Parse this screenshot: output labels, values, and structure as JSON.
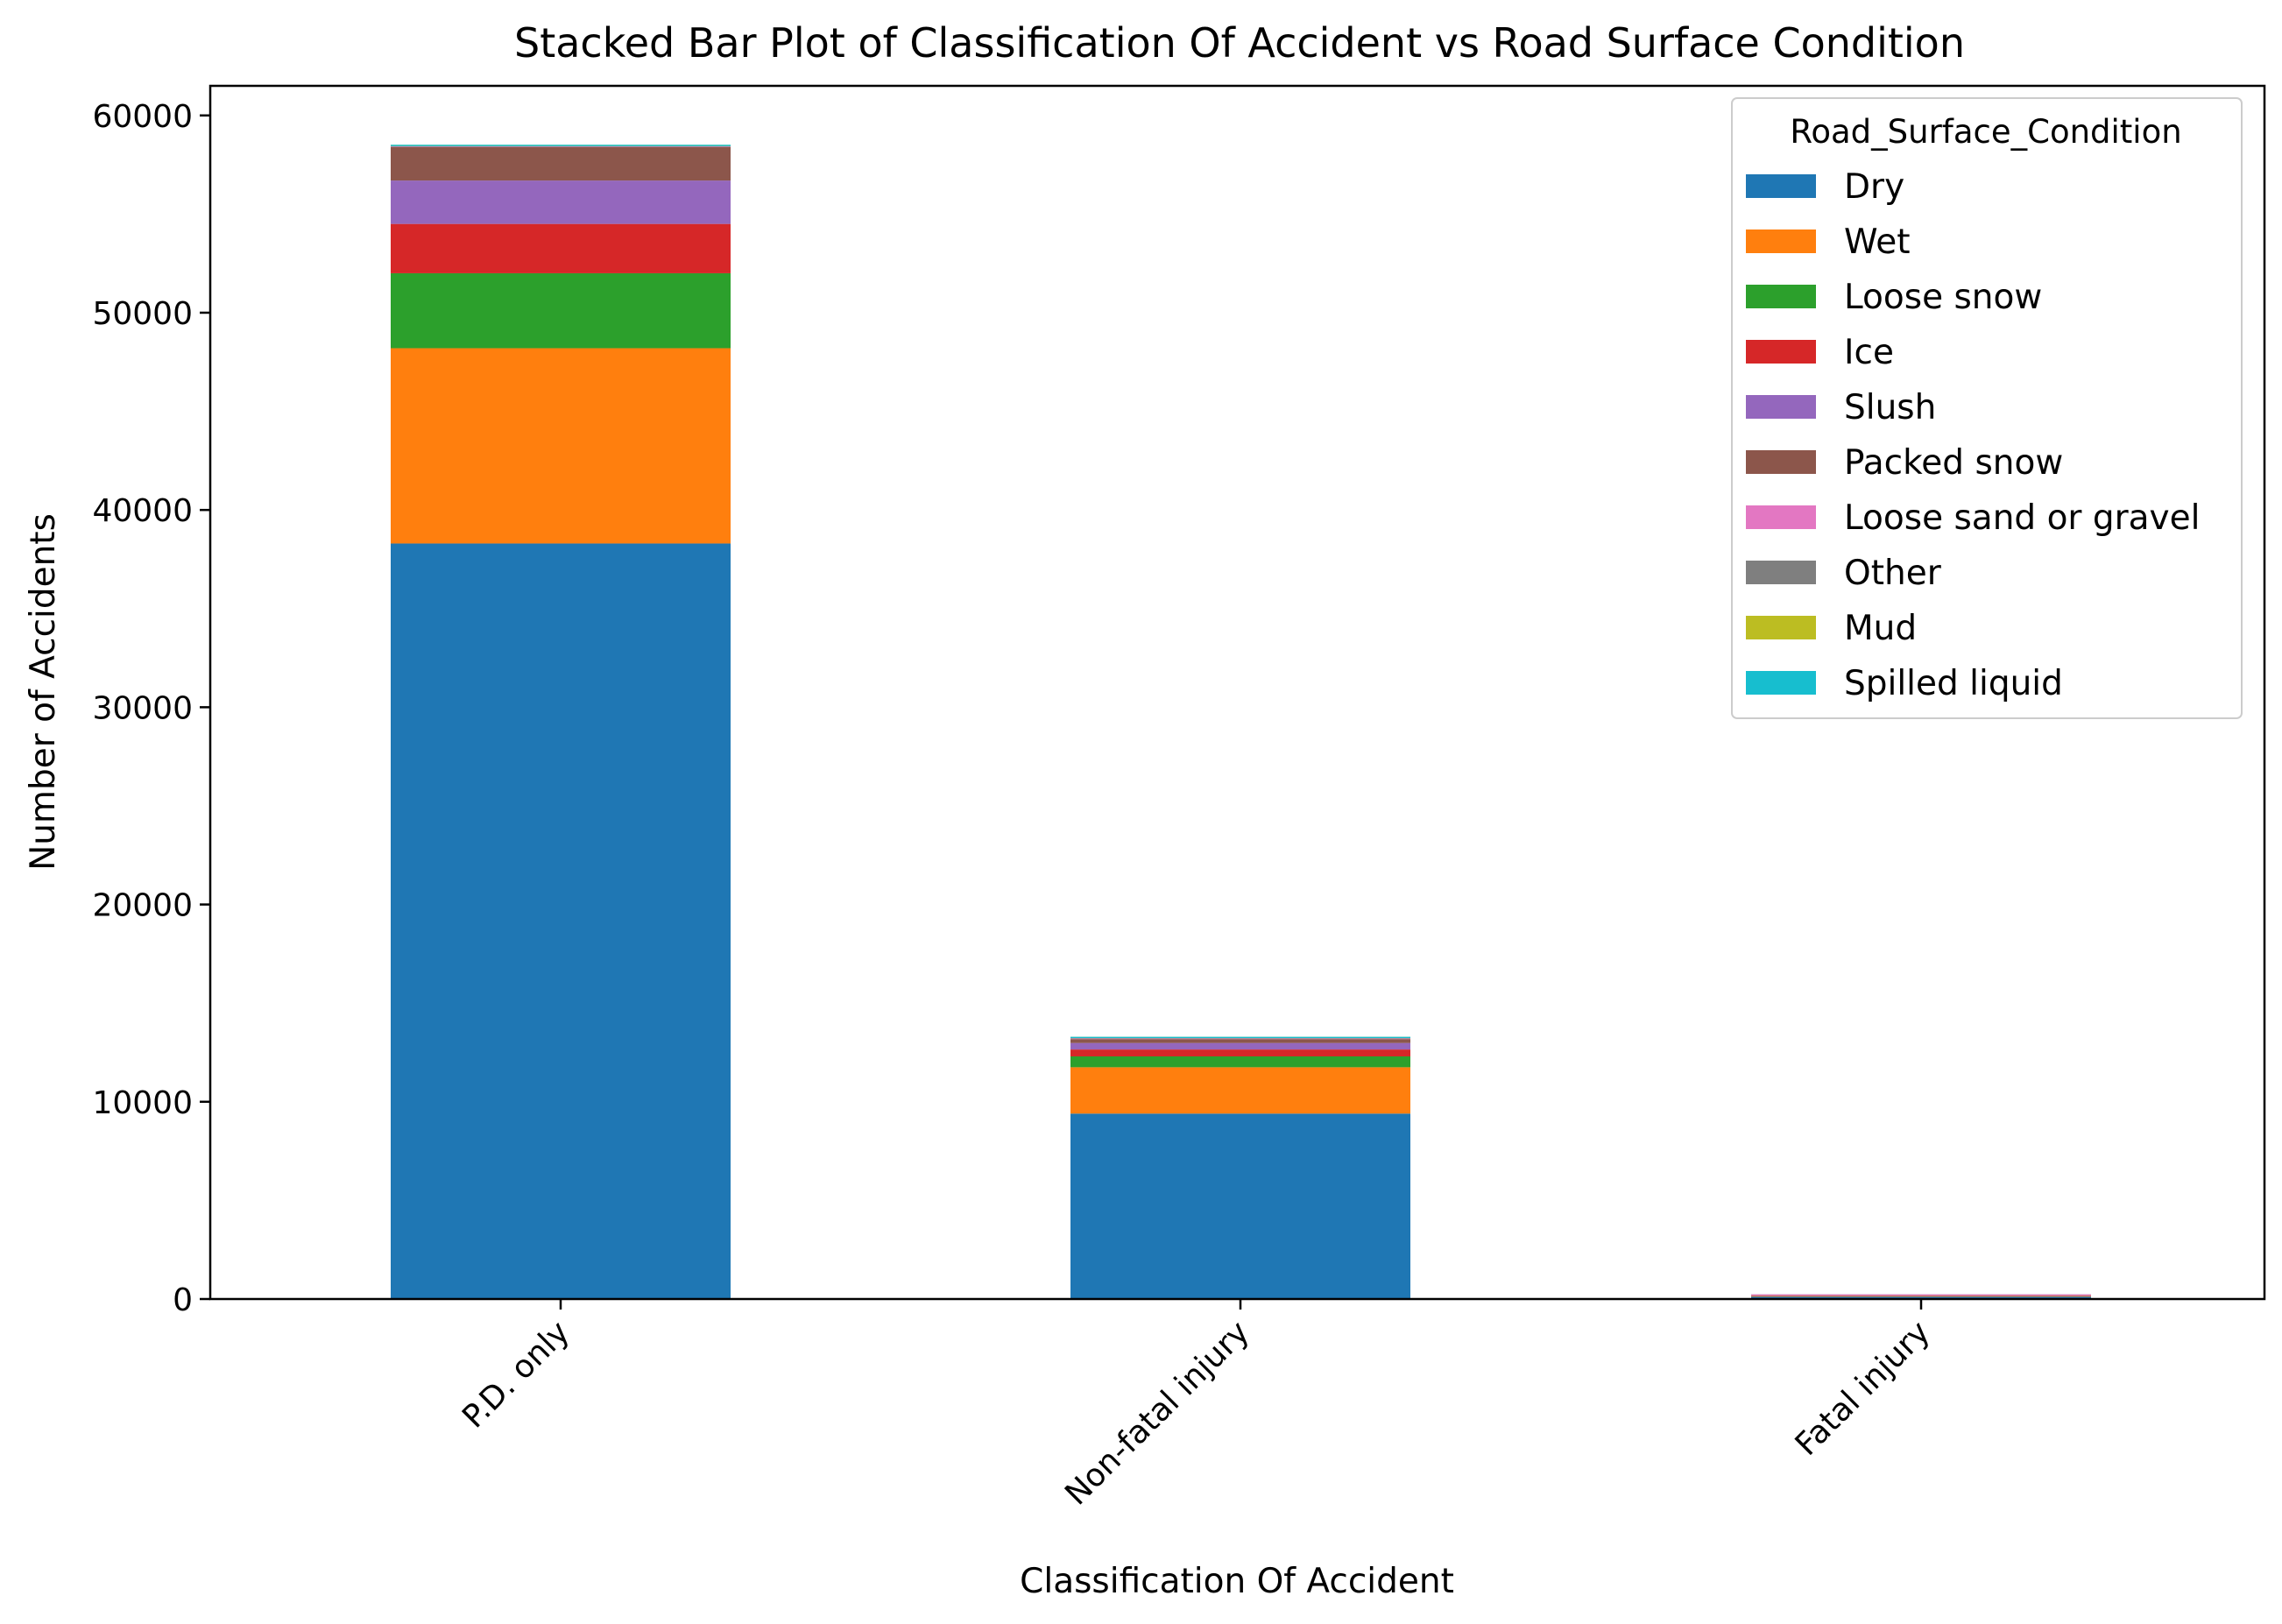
{
  "chart_data": {
    "type": "bar",
    "stacked": true,
    "title": "Stacked Bar Plot of Classification Of Accident vs Road Surface Condition",
    "xlabel": "Classification Of Accident",
    "ylabel": "Number of Accidents",
    "categories": [
      "P.D. only",
      "Non-fatal injury",
      "Fatal injury"
    ],
    "ylim": [
      0,
      61500
    ],
    "yticks": [
      0,
      10000,
      20000,
      30000,
      40000,
      50000,
      60000
    ],
    "grid": false,
    "legend": {
      "title": "Road_Surface_Condition",
      "position": "top-right"
    },
    "series": [
      {
        "name": "Dry",
        "color": "#1f77b4",
        "values": [
          38300,
          9400,
          120
        ]
      },
      {
        "name": "Wet",
        "color": "#ff7f0e",
        "values": [
          9900,
          2350,
          30
        ]
      },
      {
        "name": "Loose snow",
        "color": "#2ca02c",
        "values": [
          3800,
          550,
          5
        ]
      },
      {
        "name": "Ice",
        "color": "#d62728",
        "values": [
          2500,
          350,
          5
        ]
      },
      {
        "name": "Slush",
        "color": "#9467bd",
        "values": [
          2200,
          330,
          3
        ]
      },
      {
        "name": "Packed snow",
        "color": "#8c564b",
        "values": [
          1700,
          200,
          2
        ]
      },
      {
        "name": "Loose sand or gravel",
        "color": "#e377c2",
        "values": [
          20,
          30,
          1
        ]
      },
      {
        "name": "Other",
        "color": "#7f7f7f",
        "values": [
          20,
          10,
          0
        ]
      },
      {
        "name": "Mud",
        "color": "#bcbd22",
        "values": [
          5,
          5,
          0
        ]
      },
      {
        "name": "Spilled liquid",
        "color": "#17becf",
        "values": [
          5,
          5,
          0
        ]
      }
    ]
  }
}
